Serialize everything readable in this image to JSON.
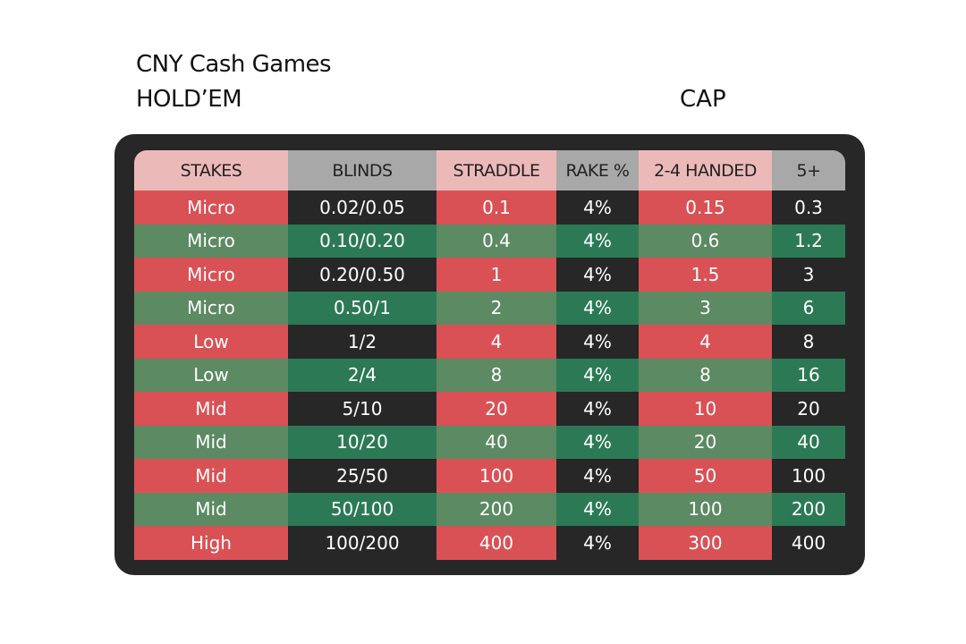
{
  "title": "CNY Cash Games",
  "subtitle": "HOLD’EM",
  "cap_label": "CAP",
  "headers": [
    "STAKES",
    "BLINDS",
    "STRADDLE",
    "RAKE %",
    "2-4 HANDED",
    "5+"
  ],
  "rows": [
    [
      "Micro",
      "0.02/0.05",
      "0.1",
      "4%",
      "0.15",
      "0.3"
    ],
    [
      "Micro",
      "0.10/0.20",
      "0.4",
      "4%",
      "0.6",
      "1.2"
    ],
    [
      "Micro",
      "0.20/0.50",
      "1",
      "4%",
      "1.5",
      "3"
    ],
    [
      "Micro",
      "0.50/1",
      "2",
      "4%",
      "3",
      "6"
    ],
    [
      "Low",
      "1/2",
      "4",
      "4%",
      "4",
      "8"
    ],
    [
      "Low",
      "2/4",
      "8",
      "4%",
      "8",
      "16"
    ],
    [
      "Mid",
      "5/10",
      "20",
      "4%",
      "10",
      "20"
    ],
    [
      "Mid",
      "10/20",
      "40",
      "4%",
      "20",
      "40"
    ],
    [
      "Mid",
      "25/50",
      "100",
      "4%",
      "50",
      "100"
    ],
    [
      "Mid",
      "50/100",
      "200",
      "4%",
      "100",
      "200"
    ],
    [
      "High",
      "100/200",
      "400",
      "4%",
      "300",
      "400"
    ]
  ],
  "colors": {
    "red": "#d95155",
    "light_green": "#5c8a62",
    "dark_green": "#2c7a55",
    "dark": "#272727",
    "header_pink": "#ecb9b9",
    "header_gray": "#a8a8a8"
  }
}
